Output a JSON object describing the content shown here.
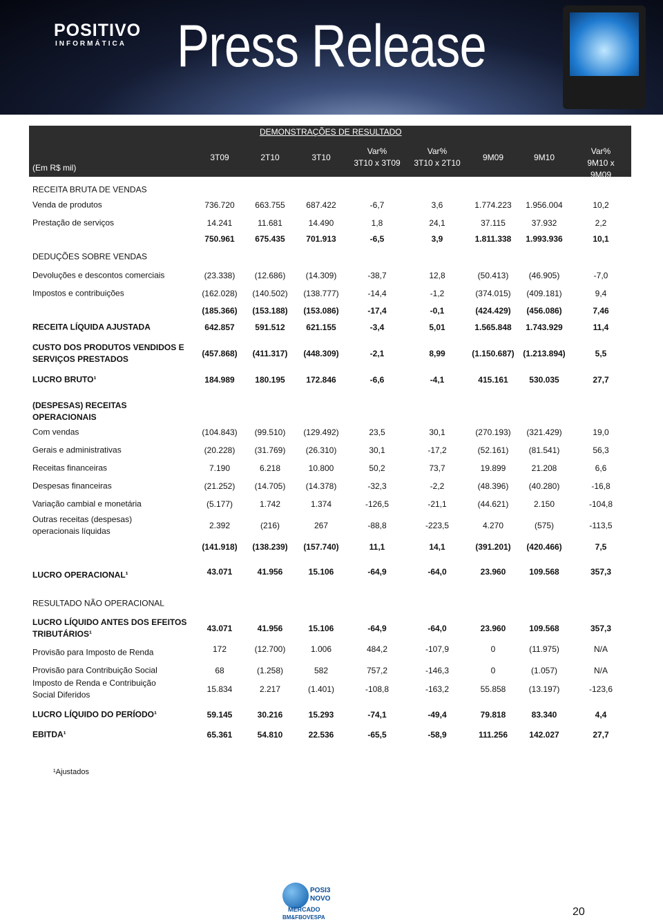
{
  "header": {
    "brand": "POSITIVO",
    "brand_sub": "INFORMÁTICA",
    "title": "Press Release"
  },
  "table": {
    "title": "DEMONSTRAÇÕES DE RESULTADO",
    "unit": "(Em R$ mil)",
    "columns": [
      "3T09",
      "2T10",
      "3T10",
      "Var%\n3T10 x 3T09",
      "Var%\n3T10 x 2T10",
      "9M09",
      "9M10",
      "Var%\n9M10 x 9M09"
    ],
    "rows": [
      {
        "label": "RECEITA BRUTA DE VENDAS"
      },
      {
        "label": "Venda de produtos",
        "values": [
          "736.720",
          "663.755",
          "687.422",
          "-6,7",
          "3,6",
          "1.774.223",
          "1.956.004",
          "10,2"
        ]
      },
      {
        "label": "Prestação de serviços",
        "values": [
          "14.241",
          "11.681",
          "14.490",
          "1,8",
          "24,1",
          "37.115",
          "37.932",
          "2,2"
        ]
      },
      {
        "values": [
          "750.961",
          "675.435",
          "701.913",
          "-6,5",
          "3,9",
          "1.811.338",
          "1.993.936",
          "10,1"
        ]
      },
      {
        "label": "DEDUÇÕES SOBRE VENDAS"
      },
      {
        "label": "Devoluções e descontos comerciais",
        "values": [
          "(23.338)",
          "(12.686)",
          "(14.309)",
          "-38,7",
          "12,8",
          "(50.413)",
          "(46.905)",
          "-7,0"
        ]
      },
      {
        "label": "Impostos e contribuições",
        "values": [
          "(162.028)",
          "(140.502)",
          "(138.777)",
          "-14,4",
          "-1,2",
          "(374.015)",
          "(409.181)",
          "9,4"
        ]
      },
      {
        "values": [
          "(185.366)",
          "(153.188)",
          "(153.086)",
          "-17,4",
          "-0,1",
          "(424.429)",
          "(456.086)",
          "7,46"
        ]
      },
      {
        "label": "RECEITA LÍQUIDA AJUSTADA",
        "values": [
          "642.857",
          "591.512",
          "621.155",
          "-3,4",
          "5,01",
          "1.565.848",
          "1.743.929",
          "11,4"
        ]
      },
      {
        "label": "CUSTO DOS PRODUTOS VENDIDOS E\nSERVIÇOS PRESTADOS",
        "values": [
          "(457.868)",
          "(411.317)",
          "(448.309)",
          "-2,1",
          "8,99",
          "(1.150.687)",
          "(1.213.894)",
          "5,5"
        ]
      },
      {
        "label": "LUCRO BRUTO¹",
        "values": [
          "184.989",
          "180.195",
          "172.846",
          "-6,6",
          "-4,1",
          "415.161",
          "530.035",
          "27,7"
        ]
      },
      {
        "label": "(DESPESAS) RECEITAS\nOPERACIONAIS"
      },
      {
        "label": "Com vendas",
        "values": [
          "(104.843)",
          "(99.510)",
          "(129.492)",
          "23,5",
          "30,1",
          "(270.193)",
          "(321.429)",
          "19,0"
        ]
      },
      {
        "label": "Gerais e administrativas",
        "values": [
          "(20.228)",
          "(31.769)",
          "(26.310)",
          "30,1",
          "-17,2",
          "(52.161)",
          "(81.541)",
          "56,3"
        ]
      },
      {
        "label": "Receitas financeiras",
        "values": [
          "7.190",
          "6.218",
          "10.800",
          "50,2",
          "73,7",
          "19.899",
          "21.208",
          "6,6"
        ]
      },
      {
        "label": "Despesas financeiras",
        "values": [
          "(21.252)",
          "(14.705)",
          "(14.378)",
          "-32,3",
          "-2,2",
          "(48.396)",
          "(40.280)",
          "-16,8"
        ]
      },
      {
        "label": "Variação cambial e monetária",
        "values": [
          "(5.177)",
          "1.742",
          "1.374",
          "-126,5",
          "-21,1",
          "(44.621)",
          "2.150",
          "-104,8"
        ]
      },
      {
        "label": "Outras receitas (despesas)\noperacionais líquidas",
        "values": [
          "2.392",
          "(216)",
          "267",
          "-88,8",
          "-223,5",
          "4.270",
          "(575)",
          "-113,5"
        ]
      },
      {
        "values": [
          "(141.918)",
          "(138.239)",
          "(157.740)",
          "11,1",
          "14,1",
          "(391.201)",
          "(420.466)",
          "7,5"
        ]
      },
      {
        "label": "LUCRO OPERACIONAL¹",
        "values": [
          "43.071",
          "41.956",
          "15.106",
          "-64,9",
          "-64,0",
          "23.960",
          "109.568",
          "357,3"
        ]
      },
      {
        "label": "RESULTADO NÃO OPERACIONAL"
      },
      {
        "label": "LUCRO LÍQUIDO ANTES DOS EFEITOS\nTRIBUTÁRIOS¹",
        "values": [
          "43.071",
          "41.956",
          "15.106",
          "-64,9",
          "-64,0",
          "23.960",
          "109.568",
          "357,3"
        ]
      },
      {
        "label": "Provisão para Imposto de Renda",
        "values": [
          "172",
          "(12.700)",
          "1.006",
          "484,2",
          "-107,9",
          "0",
          "(11.975)",
          "N/A"
        ]
      },
      {
        "label": "Provisão para Contribuição Social",
        "values": [
          "68",
          "(1.258)",
          "582",
          "757,2",
          "-146,3",
          "0",
          "(1.057)",
          "N/A"
        ]
      },
      {
        "label": "Imposto de Renda e Contribuição\nSocial Diferidos",
        "values": [
          "15.834",
          "2.217",
          "(1.401)",
          "-108,8",
          "-163,2",
          "55.858",
          "(13.197)",
          "-123,6"
        ]
      },
      {
        "label": "LUCRO LÍQUIDO DO PERÍODO¹",
        "values": [
          "59.145",
          "30.216",
          "15.293",
          "-74,1",
          "-49,4",
          "79.818",
          "83.340",
          "4,4"
        ]
      },
      {
        "label": "EBITDA¹",
        "values": [
          "65.361",
          "54.810",
          "22.536",
          "-65,5",
          "-58,9",
          "111.256",
          "142.027",
          "27,7"
        ]
      }
    ]
  },
  "footnote": "¹Ajustados",
  "footer": {
    "logo": [
      "POSI3",
      "NOVO",
      "MERCADO",
      "BM&FBOVESPA"
    ],
    "page": "20"
  }
}
